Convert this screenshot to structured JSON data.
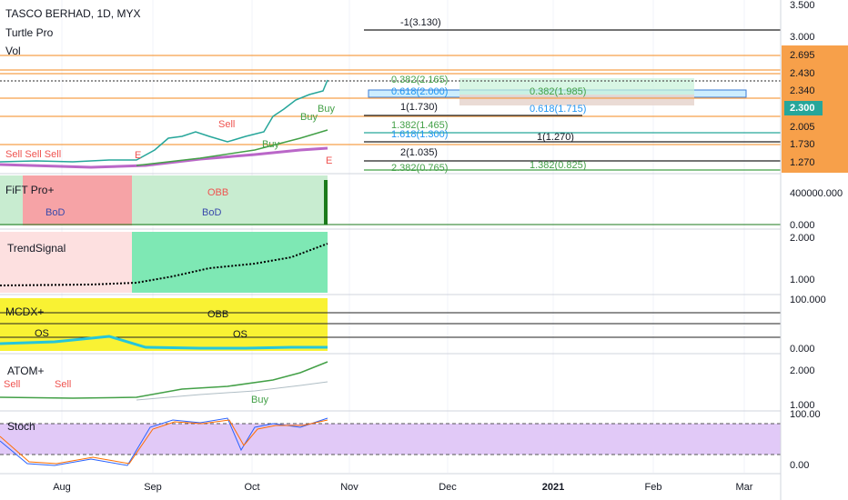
{
  "header": {
    "title": "TASCO BERHAD, 1D, MYX",
    "indicator": "Turtle Pro",
    "volume": "Vol"
  },
  "price_axis": [
    "3.500",
    "3.000",
    "2.695",
    "2.430",
    "2.340",
    "2.300",
    "2.005",
    "1.730",
    "1.270"
  ],
  "fib_labels": [
    "-1(3.130)",
    "0.382(2.165)",
    "0.618(2.000)",
    "0.382(1.985)",
    "1(1.730)",
    "0.618(1.715)",
    "1.382(1.465)",
    "1.618(1.300)",
    "1(1.270)",
    "2(1.035)",
    "2.382(0.765)",
    "1.382(0.825)"
  ],
  "signals": [
    "Sell Sell Sell",
    "Sell",
    "Buy",
    "Buy",
    "Buy",
    "E",
    "E"
  ],
  "panes": [
    {
      "title": "FiFT Pro+",
      "labels": [
        "BoD",
        "BoD",
        "OBB"
      ],
      "axis": [
        "400000.000",
        "0.000"
      ]
    },
    {
      "title": "TrendSignal",
      "labels": [],
      "axis": [
        "2.000",
        "1.000"
      ]
    },
    {
      "title": "MCDX+",
      "labels": [
        "OBB",
        "OS",
        "OS"
      ],
      "axis": [
        "100.000",
        "0.000"
      ]
    },
    {
      "title": "ATOM+",
      "labels": [
        "Sell",
        "Sell",
        "Buy"
      ],
      "axis": [
        "2.000",
        "1.000"
      ]
    },
    {
      "title": "Stoch",
      "labels": [],
      "axis": [
        "100.00",
        "0.00"
      ]
    }
  ],
  "time_axis": [
    "Aug",
    "Sep",
    "Oct",
    "Nov",
    "Dec",
    "2021",
    "Feb",
    "Mar"
  ]
}
